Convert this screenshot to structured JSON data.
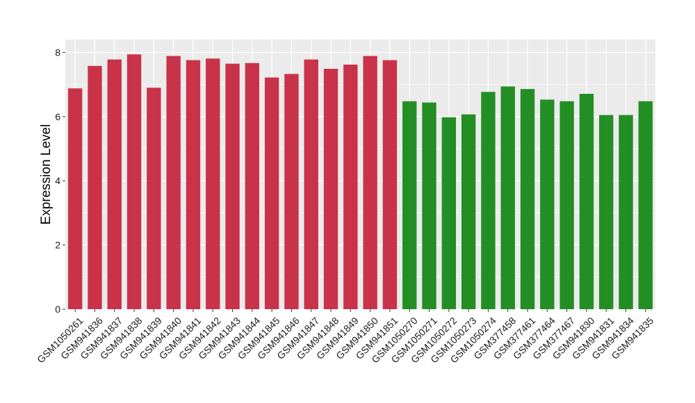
{
  "chart_data": {
    "type": "bar",
    "title": "",
    "xlabel": "",
    "ylabel": "Expression Level",
    "ylim": [
      0,
      8.4
    ],
    "yticks": [
      0,
      2,
      4,
      6,
      8
    ],
    "grid": true,
    "categories": [
      "GSM1050261",
      "GSM941836",
      "GSM941837",
      "GSM941838",
      "GSM941839",
      "GSM941840",
      "GSM941841",
      "GSM941842",
      "GSM941843",
      "GSM941844",
      "GSM941845",
      "GSM941846",
      "GSM941847",
      "GSM941848",
      "GSM941849",
      "GSM941850",
      "GSM941851",
      "GSM1050270",
      "GSM1050271",
      "GSM1050272",
      "GSM1050273",
      "GSM1050274",
      "GSM377458",
      "GSM377461",
      "GSM377464",
      "GSM377467",
      "GSM941830",
      "GSM941831",
      "GSM941834",
      "GSM941835"
    ],
    "values": [
      6.88,
      7.58,
      7.78,
      7.94,
      6.9,
      7.89,
      7.76,
      7.81,
      7.65,
      7.67,
      7.22,
      7.33,
      7.78,
      7.49,
      7.62,
      7.89,
      7.76,
      6.48,
      6.44,
      5.98,
      6.07,
      6.77,
      6.94,
      6.86,
      6.53,
      6.48,
      6.71,
      6.05,
      6.05,
      6.48
    ],
    "groups": [
      "red",
      "red",
      "red",
      "red",
      "red",
      "red",
      "red",
      "red",
      "red",
      "red",
      "red",
      "red",
      "red",
      "red",
      "red",
      "red",
      "red",
      "green",
      "green",
      "green",
      "green",
      "green",
      "green",
      "green",
      "green",
      "green",
      "green",
      "green",
      "green",
      "green"
    ],
    "colors": {
      "red": "#c8334a",
      "green": "#238e23"
    },
    "panel_background": "#ebebeb",
    "gridline_color": "#ffffff"
  }
}
